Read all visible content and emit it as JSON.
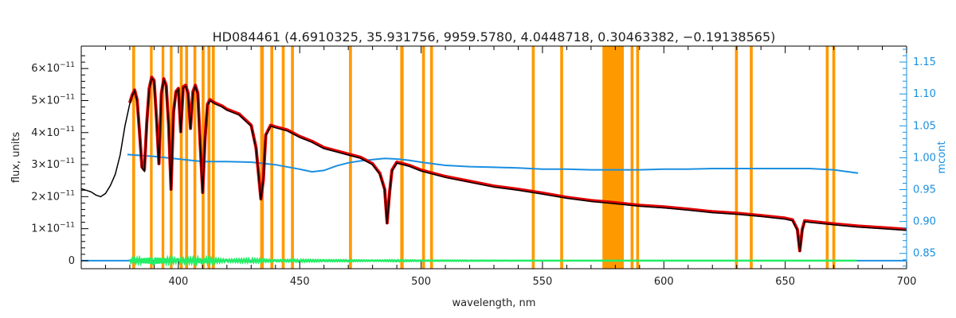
{
  "chart_data": {
    "type": "line",
    "title": "HD084461   (4.6910325, 35.931756, 9959.5780, 4.0448718, 0.30463382, −0.19138565)",
    "xlabel": "wavelength, nm",
    "ylabel": "flux, units",
    "y2label": "mcont",
    "xlim": [
      360,
      700
    ],
    "ylim": [
      -0.25,
      6.7
    ],
    "y_tick_exponent": "−11",
    "y2lim": [
      0.826,
      1.175
    ],
    "x_ticks": [
      400,
      450,
      500,
      550,
      600,
      650,
      700
    ],
    "y_ticks": [
      0,
      1,
      2,
      3,
      4,
      5,
      6
    ],
    "y_tick_labels": [
      "0",
      "1×10",
      "2×10",
      "3×10",
      "4×10",
      "5×10",
      "6×10"
    ],
    "y2_ticks": [
      0.85,
      0.9,
      0.95,
      1.0,
      1.05,
      1.1,
      1.15
    ],
    "y2_tick_labels": [
      "0.85",
      "0.90",
      "0.95",
      "1.00",
      "1.05",
      "1.10",
      "1.15"
    ],
    "colors": {
      "observed": "#000000",
      "model": "#e00000",
      "model_highlight": "#ffd000",
      "mask": "#ff9900",
      "continuum": "#1a8fe0",
      "residual": "#22ee66",
      "zero_line": "#1a8fe0"
    },
    "masked_regions": [
      [
        381.0,
        382.2
      ],
      [
        388.3,
        389.4
      ],
      [
        393.1,
        394.2
      ],
      [
        396.5,
        397.6
      ],
      [
        400.6,
        401.8
      ],
      [
        402.8,
        404.0
      ],
      [
        406.2,
        407.4
      ],
      [
        409.6,
        410.8
      ],
      [
        412.0,
        413.2
      ],
      [
        413.8,
        415.0
      ],
      [
        433.7,
        435.2
      ],
      [
        437.9,
        439.1
      ],
      [
        442.6,
        443.8
      ],
      [
        446.4,
        447.6
      ],
      [
        470.3,
        471.5
      ],
      [
        491.4,
        492.8
      ],
      [
        500.4,
        501.6
      ],
      [
        503.7,
        504.9
      ],
      [
        545.6,
        546.8
      ],
      [
        557.3,
        558.5
      ],
      [
        574.7,
        583.5
      ],
      [
        586.3,
        587.5
      ],
      [
        588.6,
        589.8
      ],
      [
        629.3,
        630.5
      ],
      [
        635.4,
        636.6
      ],
      [
        666.7,
        667.9
      ],
      [
        669.4,
        670.6
      ]
    ],
    "series": [
      {
        "type": "spectrum",
        "x": [
          360,
          362,
          364,
          366,
          368,
          370,
          372,
          374,
          376,
          378,
          380,
          381,
          382,
          383,
          384,
          385,
          386,
          387,
          388,
          389,
          390,
          391,
          392,
          393,
          394,
          395,
          396,
          397,
          398,
          399,
          400,
          401,
          402,
          403,
          404,
          405,
          406,
          407,
          408,
          409,
          410,
          411,
          412,
          413,
          414,
          415,
          418,
          420,
          425,
          430,
          432,
          434,
          435,
          436,
          438,
          440,
          445,
          450,
          455,
          460,
          465,
          470,
          475,
          480,
          483,
          485,
          486,
          487,
          488,
          490,
          495,
          500,
          510,
          520,
          530,
          540,
          550,
          560,
          570,
          580,
          590,
          600,
          610,
          620,
          630,
          640,
          650,
          653,
          655,
          656,
          657,
          658,
          660,
          670,
          680,
          690,
          700
        ],
        "y": [
          2.25,
          2.2,
          2.15,
          2.05,
          2.0,
          2.1,
          2.35,
          2.7,
          3.3,
          4.2,
          4.9,
          5.15,
          5.3,
          5.0,
          4.0,
          2.9,
          2.8,
          4.3,
          5.35,
          5.7,
          5.6,
          4.4,
          3.0,
          5.2,
          5.65,
          5.45,
          4.2,
          2.2,
          4.6,
          5.25,
          5.35,
          4.0,
          5.4,
          5.45,
          5.2,
          4.1,
          5.25,
          5.45,
          5.2,
          3.6,
          2.1,
          3.8,
          4.85,
          5.0,
          4.95,
          4.9,
          4.8,
          4.7,
          4.55,
          4.2,
          3.5,
          1.9,
          2.5,
          3.9,
          4.2,
          4.15,
          4.05,
          3.85,
          3.7,
          3.5,
          3.4,
          3.3,
          3.2,
          3.0,
          2.7,
          2.2,
          1.15,
          2.1,
          2.8,
          3.05,
          2.95,
          2.8,
          2.6,
          2.45,
          2.3,
          2.2,
          2.08,
          1.95,
          1.85,
          1.78,
          1.7,
          1.65,
          1.58,
          1.5,
          1.45,
          1.38,
          1.3,
          1.25,
          0.95,
          0.28,
          0.95,
          1.22,
          1.2,
          1.12,
          1.05,
          1.0,
          0.95
        ]
      },
      {
        "type": "continuum",
        "x": [
          379,
          390,
          400,
          410,
          420,
          430,
          440,
          450,
          455,
          460,
          465,
          470,
          475,
          480,
          485,
          490,
          495,
          500,
          510,
          520,
          530,
          540,
          550,
          560,
          570,
          580,
          590,
          600,
          610,
          620,
          630,
          640,
          650,
          660,
          670,
          680
        ],
        "y": [
          1.005,
          1.002,
          0.998,
          0.994,
          0.994,
          0.993,
          0.989,
          0.982,
          0.978,
          0.98,
          0.987,
          0.992,
          0.995,
          0.997,
          0.999,
          0.998,
          0.996,
          0.993,
          0.988,
          0.986,
          0.985,
          0.984,
          0.982,
          0.982,
          0.981,
          0.981,
          0.981,
          0.982,
          0.982,
          0.983,
          0.983,
          0.983,
          0.983,
          0.983,
          0.981,
          0.976
        ]
      },
      {
        "type": "residual",
        "x": [
          380,
          390,
          400,
          410,
          420,
          430,
          440,
          450,
          460,
          470,
          480,
          490,
          500,
          520,
          540,
          560,
          580,
          600,
          620,
          640,
          660,
          680
        ],
        "y": [
          0.05,
          0.1,
          0.05,
          0.08,
          0.03,
          0.05,
          0.02,
          0.03,
          0.02,
          0.02,
          0.01,
          0.02,
          0.01,
          0.01,
          0.0,
          0.0,
          0.0,
          0.0,
          0.0,
          0.0,
          0.0,
          0.0
        ]
      }
    ]
  }
}
